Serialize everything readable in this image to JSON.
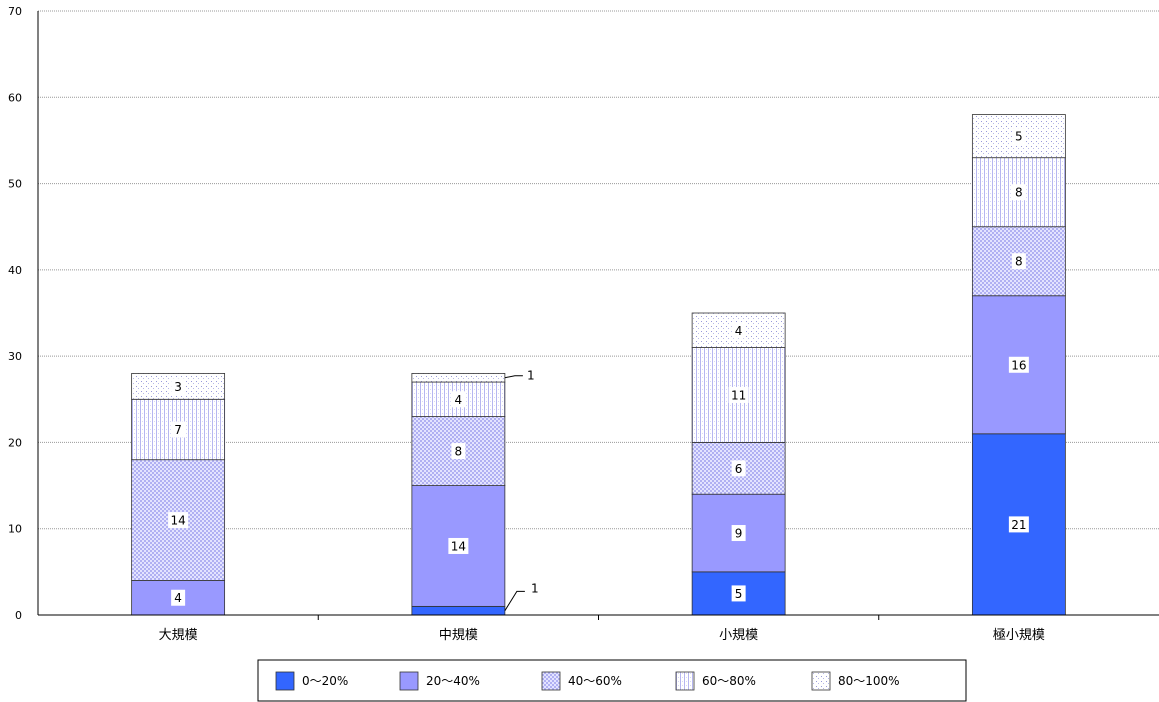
{
  "chart_data": {
    "type": "bar",
    "stacked": true,
    "categories": [
      "大規模",
      "中規模",
      "小規模",
      "極小規模"
    ],
    "series": [
      {
        "name": "0〜20%",
        "values": [
          0,
          1,
          5,
          21
        ],
        "color": "#3366ff",
        "pattern": "solid"
      },
      {
        "name": "20〜40%",
        "values": [
          4,
          14,
          9,
          16
        ],
        "color": "#9999ff",
        "pattern": "solid"
      },
      {
        "name": "40〜60%",
        "values": [
          14,
          8,
          6,
          8
        ],
        "color": "#9999ff",
        "pattern": "checker"
      },
      {
        "name": "60〜80%",
        "values": [
          7,
          4,
          11,
          8
        ],
        "color": "#9999ff",
        "pattern": "vertical"
      },
      {
        "name": "80〜100%",
        "values": [
          3,
          1,
          4,
          5
        ],
        "color": "#9999ff",
        "pattern": "dots"
      }
    ],
    "title": "",
    "xlabel": "",
    "ylabel": "",
    "ylim": [
      0,
      70
    ],
    "yticks": [
      0,
      10,
      20,
      30,
      40,
      50,
      60,
      70
    ],
    "grid": true,
    "legend_position": "bottom"
  }
}
